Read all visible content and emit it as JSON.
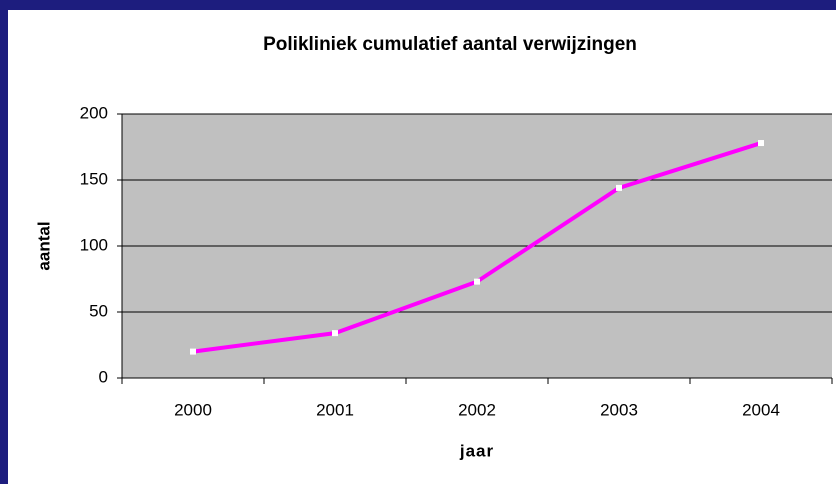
{
  "chart_data": {
    "type": "line",
    "title": "Polikliniek cumulatief aantal verwijzingen",
    "x_label": "jaar",
    "y_label": "aantal",
    "categories": [
      "2000",
      "2001",
      "2002",
      "2003",
      "2004"
    ],
    "values": [
      20,
      34,
      73,
      144,
      178
    ],
    "color": "#ff00ff",
    "ylim": [
      0,
      200
    ],
    "yticks": [
      0,
      50,
      100,
      150,
      200
    ],
    "grid": true
  }
}
